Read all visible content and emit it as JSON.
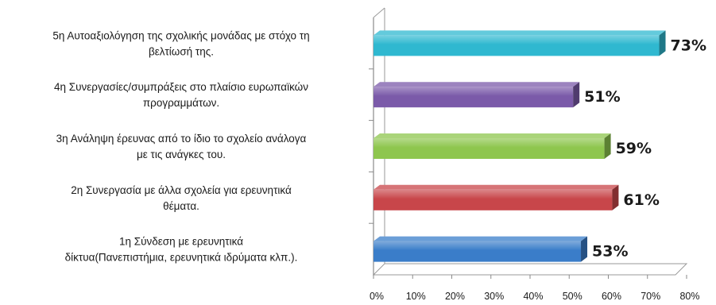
{
  "chart_data": {
    "type": "bar",
    "orientation": "horizontal",
    "title": "",
    "xlabel": "",
    "ylabel": "",
    "xlim": [
      0,
      80
    ],
    "x_ticks": [
      "0%",
      "10%",
      "20%",
      "30%",
      "40%",
      "50%",
      "60%",
      "70%",
      "80%"
    ],
    "grid": false,
    "legend": "none",
    "categories": [
      {
        "lines": [
          "5η  Αυτοαξιολόγηση της σχολικής μονάδας με στόχο τη",
          "βελτίωσή της."
        ],
        "value": 73,
        "value_label": "73%",
        "color": "#2fb8d0"
      },
      {
        "lines": [
          "4η  Συνεργασίες/συμπράξεις στο πλαίσιο ευρωπαϊκών",
          "προγραμμάτων."
        ],
        "value": 51,
        "value_label": "51%",
        "color": "#7b5aa9"
      },
      {
        "lines": [
          "3η  Ανάληψη έρευνας από το ίδιο το σχολείο ανάλογα",
          "με τις ανάγκες του."
        ],
        "value": 59,
        "value_label": "59%",
        "color": "#8ec64e"
      },
      {
        "lines": [
          "2η   Συνεργασία με άλλα σχολεία για ερευνητικά",
          "θέματα."
        ],
        "value": 61,
        "value_label": "61%",
        "color": "#c8464a"
      },
      {
        "lines": [
          "1η  Σύνδεση με ερευνητικά",
          "δίκτυα(Πανεπιστήμια, ερευνητικά ιδρύματα κλπ.)."
        ],
        "value": 53,
        "value_label": "53%",
        "color": "#3a7dc9"
      }
    ]
  }
}
